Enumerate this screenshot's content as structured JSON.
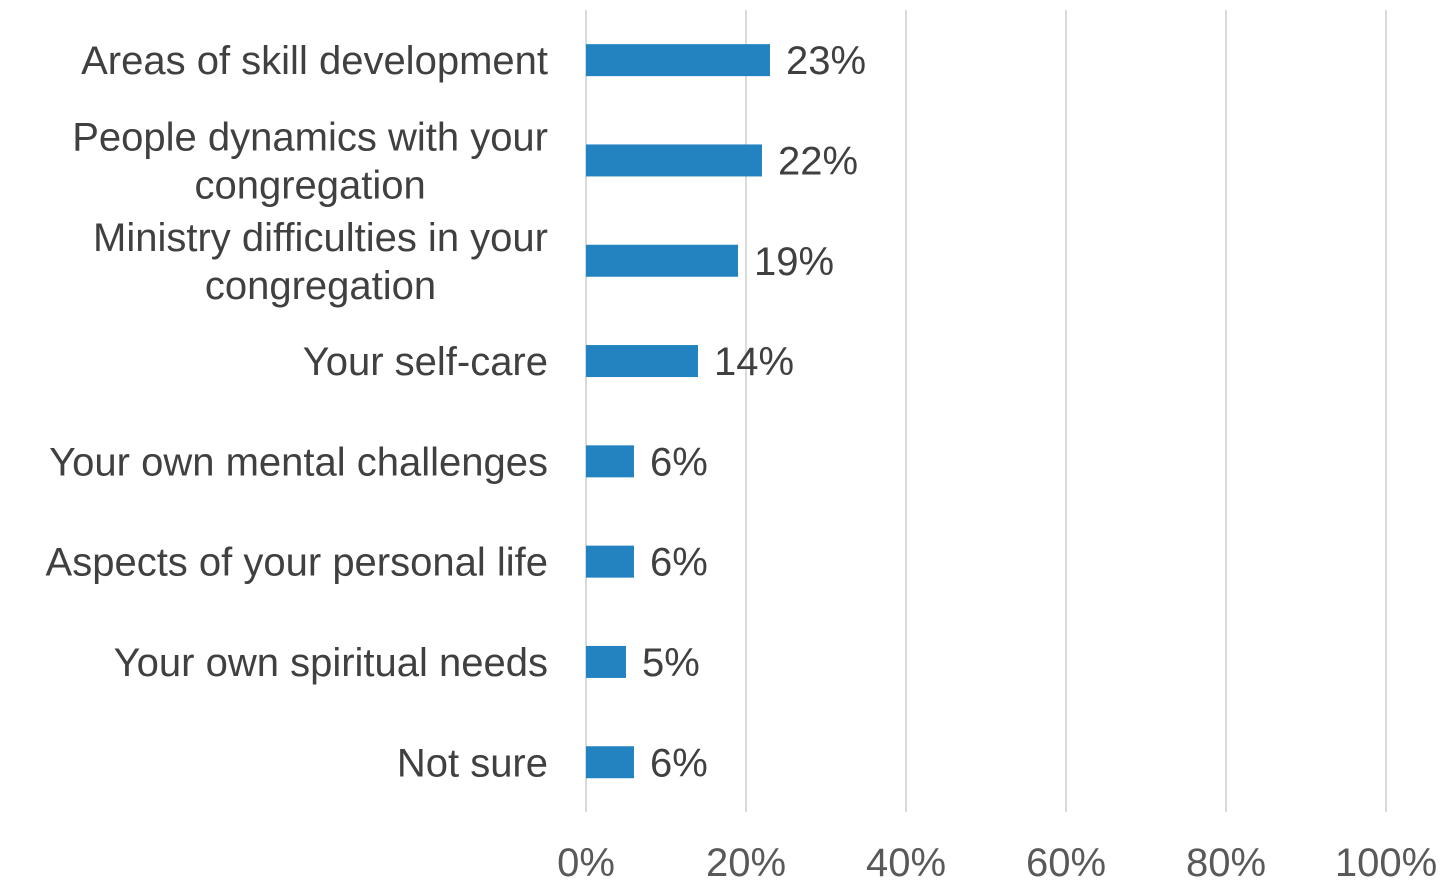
{
  "chart_data": {
    "type": "bar",
    "orientation": "horizontal",
    "title": "",
    "xlabel": "",
    "ylabel": "",
    "categories": [
      "Areas of skill development",
      "People dynamics with your congregation",
      "Ministry difficulties in your congregation",
      "Your self-care",
      "Your own mental challenges",
      "Aspects of your personal life",
      "Your own spiritual needs",
      "Not sure"
    ],
    "values": [
      23,
      22,
      19,
      14,
      6,
      6,
      5,
      6
    ],
    "value_labels": [
      "23%",
      "22%",
      "19%",
      "14%",
      "6%",
      "6%",
      "5%",
      "6%"
    ],
    "xlim": [
      0,
      100
    ],
    "x_ticks": [
      0,
      20,
      40,
      60,
      80,
      100
    ],
    "x_tick_labels": [
      "0%",
      "20%",
      "40%",
      "60%",
      "80%",
      "100%"
    ],
    "grid": "vertical",
    "legend": "none",
    "bar_color": "#2283C0",
    "grid_color": "#D9D9D9",
    "text_color": "#404040"
  }
}
